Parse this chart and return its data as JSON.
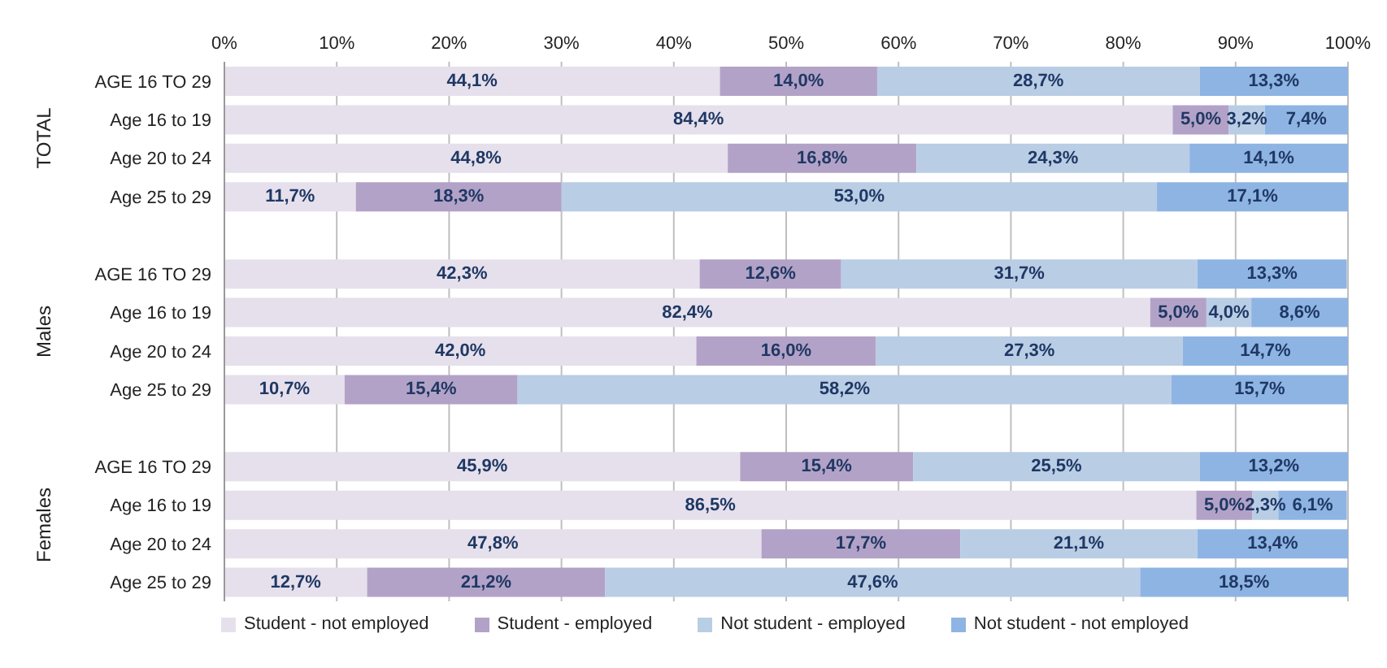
{
  "chart_data": {
    "type": "bar",
    "orientation": "horizontal",
    "stacked": true,
    "categories": [
      "AGE 16 TO 29",
      "Age 16 to 19",
      "Age 20 to 24",
      "Age 25 to 29",
      null,
      "AGE 16 TO 29",
      "Age 16 to 19",
      "Age 20 to 24",
      "Age 25 to 29",
      null,
      "AGE 16 TO 29",
      "Age 16 to 19",
      "Age 20 to 24",
      "Age 25 to 29"
    ],
    "series": [
      {
        "name": "Student - not employed",
        "color": "#e6e0ec",
        "values": [
          44.1,
          84.4,
          44.8,
          11.7,
          null,
          42.3,
          82.4,
          42.0,
          10.7,
          null,
          45.9,
          86.5,
          47.8,
          12.7
        ],
        "value_labels": [
          "44,1%",
          "84,4%",
          "44,8%",
          "11,7%",
          null,
          "42,3%",
          "82,4%",
          "42,0%",
          "10,7%",
          null,
          "45,9%",
          "86,5%",
          "47,8%",
          "12,7%"
        ]
      },
      {
        "name": "Student - employed",
        "color": "#b3a2c7",
        "values": [
          14.0,
          5.0,
          16.8,
          18.3,
          null,
          12.6,
          5.0,
          16.0,
          15.4,
          null,
          15.4,
          5.0,
          17.7,
          21.2
        ],
        "value_labels": [
          "14,0%",
          "5,0%",
          "16,8%",
          "18,3%",
          null,
          "12,6%",
          "5,0%",
          "16,0%",
          "15,4%",
          null,
          "15,4%",
          "5,0%",
          "17,7%",
          "21,2%"
        ]
      },
      {
        "name": "Not student - employed",
        "color": "#b9cde5",
        "values": [
          28.7,
          3.2,
          24.3,
          53.0,
          null,
          31.7,
          4.0,
          27.3,
          58.2,
          null,
          25.5,
          2.3,
          21.1,
          47.6
        ],
        "value_labels": [
          "28,7%",
          "3,2%",
          "24,3%",
          "53,0%",
          null,
          "31,7%",
          "4,0%",
          "27,3%",
          "58,2%",
          null,
          "25,5%",
          "2,3%",
          "21,1%",
          "47,6%"
        ]
      },
      {
        "name": "Not student - not employed",
        "color": "#8eb4e3",
        "values": [
          13.3,
          7.4,
          14.1,
          17.1,
          null,
          13.3,
          8.6,
          14.7,
          15.7,
          null,
          13.2,
          6.1,
          13.4,
          18.5
        ],
        "value_labels": [
          "13,3%",
          "7,4%",
          "14,1%",
          "17,1%",
          null,
          "13,3%",
          "8,6%",
          "14,7%",
          "15,7%",
          null,
          "13,2%",
          "6,1%",
          "13,4%",
          "18,5%"
        ]
      }
    ],
    "xlim": [
      0,
      100
    ],
    "xticks": [
      {
        "value": 0,
        "label": "0%"
      },
      {
        "value": 10,
        "label": "10%"
      },
      {
        "value": 20,
        "label": "20%"
      },
      {
        "value": 30,
        "label": "30%"
      },
      {
        "value": 40,
        "label": "40%"
      },
      {
        "value": 50,
        "label": "50%"
      },
      {
        "value": 60,
        "label": "60%"
      },
      {
        "value": 70,
        "label": "70%"
      },
      {
        "value": 80,
        "label": "80%"
      },
      {
        "value": 90,
        "label": "90%"
      },
      {
        "value": 100,
        "label": "100%"
      }
    ],
    "grid": "x",
    "legend": "bottom",
    "annotations": [
      "TOTAL",
      "Males",
      "Females"
    ]
  }
}
